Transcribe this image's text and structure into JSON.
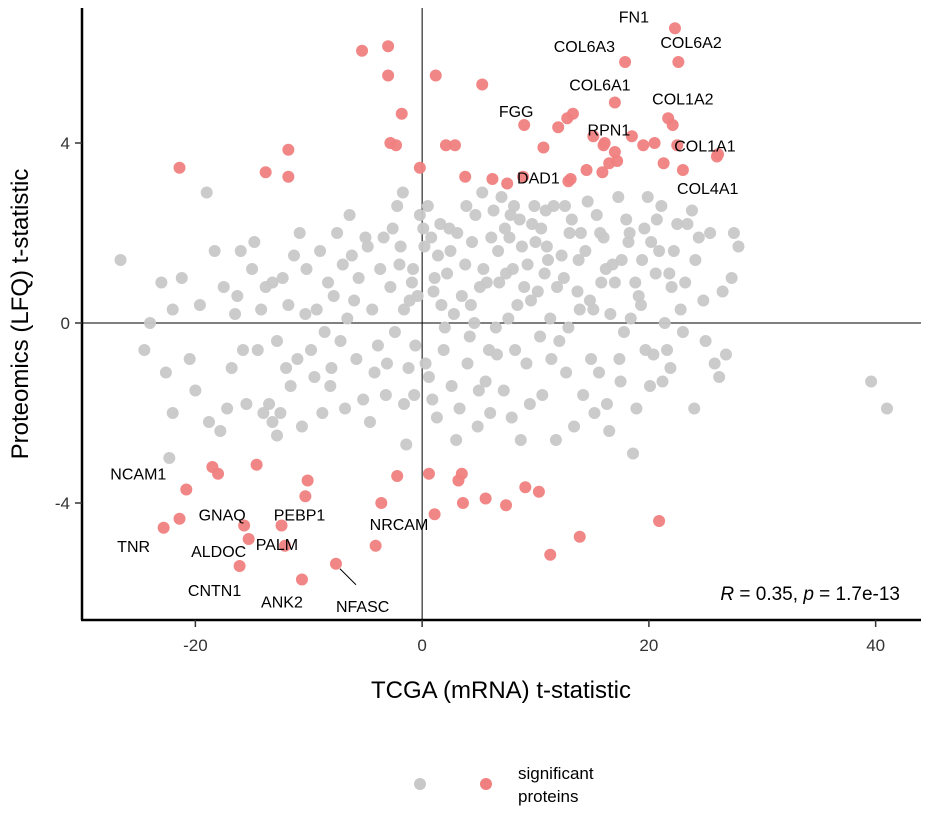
{
  "chart_data": {
    "type": "scatter",
    "xlabel": "TCGA (mRNA) t-statistic",
    "ylabel": "Proteomics (LFQ) t-statistic",
    "xlim": [
      -30,
      44
    ],
    "ylim": [
      -6.6,
      7.0
    ],
    "x_ticks": [
      -20,
      0,
      20,
      40
    ],
    "y_ticks": [
      -4,
      0,
      4
    ],
    "reference_lines": {
      "x": 0,
      "y": 0
    },
    "grid": false,
    "correlation": {
      "r_symbol": "R",
      "r_value": "0.35",
      "p_symbol": "p",
      "p_value": "1.7e-13"
    },
    "legend": {
      "position": "bottom",
      "title": "",
      "entries": [
        {
          "key": "non_significant",
          "label": "",
          "color": "#c8c8c8"
        },
        {
          "key": "significant",
          "label": "significant\nproteins",
          "color": "#f08080"
        }
      ]
    },
    "colors": {
      "non_significant": "#c8c8c8",
      "significant": "#f08080"
    },
    "labeled_points": [
      {
        "label": "FN1",
        "x": 22.3,
        "y": 6.55
      },
      {
        "label": "COL6A3",
        "x": 17.9,
        "y": 5.8
      },
      {
        "label": "COL6A2",
        "x": 22.6,
        "y": 5.8
      },
      {
        "label": "COL6A1",
        "x": 17.0,
        "y": 4.9
      },
      {
        "label": "COL1A2",
        "x": 21.7,
        "y": 4.55
      },
      {
        "label": "FGG",
        "x": 9.0,
        "y": 4.4
      },
      {
        "label": "RPN1",
        "x": 16.0,
        "y": 3.95
      },
      {
        "label": "DAD1",
        "x": 12.9,
        "y": 3.15
      },
      {
        "label": "COL1A1",
        "x": 26.0,
        "y": 3.7
      },
      {
        "label": "COL4A1",
        "x": 21.6,
        "y": 3.0
      },
      {
        "label": "NCAM1",
        "x": -20.8,
        "y": -3.7
      },
      {
        "label": "GNAQ",
        "x": -15.7,
        "y": -4.5
      },
      {
        "label": "PEBP1",
        "x": -12.4,
        "y": -4.5
      },
      {
        "label": "TNR",
        "x": -22.8,
        "y": -4.55
      },
      {
        "label": "ALDOC",
        "x": -15.3,
        "y": -4.8
      },
      {
        "label": "CNTN1",
        "x": -16.1,
        "y": -5.4
      },
      {
        "label": "PALM",
        "x": -12.1,
        "y": -4.95
      },
      {
        "label": "ANK2",
        "x": -10.6,
        "y": -5.7
      },
      {
        "label": "NRCAM",
        "x": -4.1,
        "y": -4.95
      },
      {
        "label": "NFASC",
        "x": -7.6,
        "y": -5.35
      }
    ],
    "significant_points": [
      [
        22.3,
        6.55
      ],
      [
        17.9,
        5.8
      ],
      [
        22.6,
        5.8
      ],
      [
        17.0,
        4.9
      ],
      [
        21.7,
        4.55
      ],
      [
        9.0,
        4.4
      ],
      [
        16.0,
        3.95
      ],
      [
        12.9,
        3.15
      ],
      [
        26.0,
        3.7
      ],
      [
        -20.8,
        -3.7
      ],
      [
        -15.7,
        -4.5
      ],
      [
        -12.4,
        -4.5
      ],
      [
        -22.8,
        -4.55
      ],
      [
        -15.3,
        -4.8
      ],
      [
        -16.1,
        -5.4
      ],
      [
        -12.1,
        -4.95
      ],
      [
        -10.6,
        -5.7
      ],
      [
        -4.1,
        -4.95
      ],
      [
        -7.6,
        -5.35
      ],
      [
        -5.3,
        6.05
      ],
      [
        -3.0,
        6.15
      ],
      [
        -3.0,
        5.5
      ],
      [
        1.2,
        5.5
      ],
      [
        5.3,
        5.3
      ],
      [
        -1.8,
        4.65
      ],
      [
        -2.3,
        3.95
      ],
      [
        2.1,
        3.95
      ],
      [
        2.9,
        3.95
      ],
      [
        -0.2,
        3.45
      ],
      [
        3.8,
        3.25
      ],
      [
        6.2,
        3.2
      ],
      [
        7.5,
        3.1
      ],
      [
        8.9,
        3.25
      ],
      [
        -21.4,
        3.45
      ],
      [
        -13.8,
        3.35
      ],
      [
        -11.8,
        3.25
      ],
      [
        -11.8,
        3.85
      ],
      [
        12.0,
        4.35
      ],
      [
        12.8,
        4.55
      ],
      [
        13.3,
        4.65
      ],
      [
        15.1,
        4.15
      ],
      [
        16.1,
        4.0
      ],
      [
        16.5,
        3.55
      ],
      [
        17.0,
        3.8
      ],
      [
        18.5,
        4.15
      ],
      [
        19.5,
        3.95
      ],
      [
        20.5,
        4.0
      ],
      [
        21.3,
        3.55
      ],
      [
        22.1,
        4.4
      ],
      [
        22.5,
        3.95
      ],
      [
        23.0,
        3.4
      ],
      [
        26.1,
        3.75
      ],
      [
        14.5,
        3.4
      ],
      [
        15.9,
        3.35
      ],
      [
        13.1,
        3.2
      ],
      [
        17.2,
        3.6
      ],
      [
        10.7,
        3.9
      ],
      [
        -18.5,
        -3.2
      ],
      [
        -18.0,
        -3.35
      ],
      [
        -14.6,
        -3.15
      ],
      [
        -21.4,
        -4.35
      ],
      [
        -10.1,
        -3.5
      ],
      [
        -10.3,
        -3.85
      ],
      [
        -2.2,
        -3.4
      ],
      [
        0.6,
        -3.35
      ],
      [
        -3.6,
        -4.0
      ],
      [
        1.1,
        -4.25
      ],
      [
        3.5,
        -3.35
      ],
      [
        3.2,
        -3.5
      ],
      [
        3.6,
        -4.0
      ],
      [
        5.6,
        -3.9
      ],
      [
        7.4,
        -4.05
      ],
      [
        9.1,
        -3.65
      ],
      [
        10.3,
        -3.75
      ],
      [
        11.3,
        -5.15
      ],
      [
        13.9,
        -4.75
      ],
      [
        20.9,
        -4.4
      ],
      [
        -2.8,
        4.0
      ]
    ],
    "other_points": [
      [
        -26.6,
        1.4
      ],
      [
        -24.0,
        0.0
      ],
      [
        -22.3,
        -3.0
      ],
      [
        -22.0,
        -2.0
      ],
      [
        -22.0,
        0.3
      ],
      [
        -19.0,
        2.9
      ],
      [
        -17.8,
        -2.4
      ],
      [
        -17.5,
        0.8
      ],
      [
        -16.3,
        0.6
      ],
      [
        -16.0,
        1.6
      ],
      [
        -15.0,
        1.2
      ],
      [
        -15.5,
        -1.8
      ],
      [
        -14.0,
        -2.0
      ],
      [
        -13.2,
        -2.2
      ],
      [
        -12.8,
        -2.5
      ],
      [
        -12.5,
        -2.0
      ],
      [
        -13.8,
        0.8
      ],
      [
        -12.8,
        -0.4
      ],
      [
        -11.8,
        0.4
      ],
      [
        -11.0,
        -0.8
      ],
      [
        -10.2,
        1.2
      ],
      [
        -9.5,
        -1.2
      ],
      [
        -8.8,
        -2.0
      ],
      [
        -8.1,
        -1.4
      ],
      [
        -7.5,
        2.0
      ],
      [
        -7.0,
        1.3
      ],
      [
        -6.0,
        0.5
      ],
      [
        -5.8,
        -0.8
      ],
      [
        -4.8,
        1.7
      ],
      [
        -4.2,
        -1.1
      ],
      [
        -3.4,
        1.9
      ],
      [
        -2.8,
        0.8
      ],
      [
        -2.2,
        2.6
      ],
      [
        -1.6,
        -1.8
      ],
      [
        -1.1,
        0.5
      ],
      [
        -0.8,
        1.2
      ],
      [
        -0.6,
        -0.5
      ],
      [
        -0.2,
        2.4
      ],
      [
        0.2,
        1.7
      ],
      [
        0.6,
        -1.2
      ],
      [
        1.0,
        0.7
      ],
      [
        1.4,
        1.5
      ],
      [
        1.9,
        -0.6
      ],
      [
        2.4,
        2.1
      ],
      [
        2.8,
        0.2
      ],
      [
        3.3,
        -1.9
      ],
      [
        3.8,
        1.3
      ],
      [
        4.2,
        -0.3
      ],
      [
        4.7,
        2.4
      ],
      [
        5.1,
        0.8
      ],
      [
        5.6,
        -1.3
      ],
      [
        6.1,
        1.9
      ],
      [
        6.5,
        -0.1
      ],
      [
        7.0,
        2.8
      ],
      [
        7.4,
        1.1
      ],
      [
        7.9,
        -2.1
      ],
      [
        8.4,
        0.4
      ],
      [
        8.8,
        1.7
      ],
      [
        9.2,
        -0.9
      ],
      [
        9.7,
        2.2
      ],
      [
        10.2,
        0.7
      ],
      [
        10.6,
        -1.6
      ],
      [
        11.1,
        1.4
      ],
      [
        11.6,
        2.6
      ],
      [
        12.1,
        -0.4
      ],
      [
        12.5,
        1.0
      ],
      [
        13.0,
        2.0
      ],
      [
        13.4,
        -2.3
      ],
      [
        13.9,
        0.3
      ],
      [
        14.4,
        1.6
      ],
      [
        14.9,
        -0.8
      ],
      [
        15.4,
        2.4
      ],
      [
        15.8,
        0.9
      ],
      [
        16.3,
        -1.8
      ],
      [
        16.8,
        1.3
      ],
      [
        17.3,
        2.8
      ],
      [
        17.8,
        -0.2
      ],
      [
        18.2,
        1.8
      ],
      [
        18.6,
        -2.9
      ],
      [
        19.1,
        0.6
      ],
      [
        19.6,
        2.1
      ],
      [
        20.1,
        -1.4
      ],
      [
        20.6,
        1.1
      ],
      [
        21.1,
        2.6
      ],
      [
        21.6,
        -0.6
      ],
      [
        22.2,
        1.6
      ],
      [
        22.8,
        0.3
      ],
      [
        23.4,
        2.2
      ],
      [
        24.0,
        -1.9
      ],
      [
        24.8,
        0.5
      ],
      [
        25.4,
        2.0
      ],
      [
        26.2,
        -1.2
      ],
      [
        26.8,
        -0.7
      ],
      [
        27.3,
        1.0
      ],
      [
        27.9,
        1.7
      ],
      [
        39.6,
        -1.3
      ],
      [
        41.0,
        -1.9
      ],
      [
        -20.0,
        -1.5
      ],
      [
        -18.8,
        -2.2
      ],
      [
        -16.8,
        -1.0
      ],
      [
        -14.8,
        1.8
      ],
      [
        -13.2,
        0.9
      ],
      [
        -11.6,
        -1.4
      ],
      [
        -10.3,
        0.2
      ],
      [
        -9.0,
        1.6
      ],
      [
        -8.3,
        0.9
      ],
      [
        -7.2,
        -0.4
      ],
      [
        -6.4,
        2.4
      ],
      [
        -5.2,
        -1.7
      ],
      [
        -4.4,
        0.3
      ],
      [
        -3.7,
        1.2
      ],
      [
        -3.1,
        -0.9
      ],
      [
        -2.4,
        -0.2
      ],
      [
        -1.9,
        1.7
      ],
      [
        -1.4,
        -2.7
      ],
      [
        -0.9,
        0.9
      ],
      [
        0.3,
        -0.9
      ],
      [
        0.8,
        1.9
      ],
      [
        1.3,
        -2.1
      ],
      [
        1.7,
        0.4
      ],
      [
        2.2,
        1.1
      ],
      [
        2.6,
        -1.4
      ],
      [
        3.1,
        2.0
      ],
      [
        3.5,
        0.6
      ],
      [
        4.0,
        -0.9
      ],
      [
        4.4,
        1.8
      ],
      [
        4.9,
        -2.3
      ],
      [
        5.4,
        1.2
      ],
      [
        5.9,
        -0.6
      ],
      [
        6.3,
        2.5
      ],
      [
        6.8,
        0.9
      ],
      [
        7.2,
        -1.5
      ],
      [
        7.7,
        1.9
      ],
      [
        8.2,
        -0.6
      ],
      [
        8.6,
        2.3
      ],
      [
        9.0,
        0.8
      ],
      [
        9.5,
        -1.8
      ],
      [
        10.0,
        1.8
      ],
      [
        10.4,
        -0.3
      ],
      [
        10.9,
        2.5
      ],
      [
        11.3,
        0.1
      ],
      [
        11.8,
        -2.6
      ],
      [
        12.3,
        1.5
      ],
      [
        12.7,
        -1.1
      ],
      [
        13.2,
        2.3
      ],
      [
        13.7,
        0.7
      ],
      [
        14.2,
        -1.6
      ],
      [
        14.6,
        2.7
      ],
      [
        15.1,
        0.3
      ],
      [
        15.6,
        -1.1
      ],
      [
        16.0,
        1.9
      ],
      [
        16.5,
        -2.4
      ],
      [
        17.0,
        0.9
      ],
      [
        17.5,
        -1.3
      ],
      [
        18.0,
        2.3
      ],
      [
        18.4,
        0.1
      ],
      [
        18.9,
        -1.9
      ],
      [
        19.4,
        1.4
      ],
      [
        19.9,
        2.8
      ],
      [
        20.4,
        -0.7
      ],
      [
        20.9,
        1.6
      ],
      [
        21.4,
        0.0
      ],
      [
        21.9,
        -1.0
      ],
      [
        22.5,
        2.2
      ],
      [
        23.2,
        0.9
      ],
      [
        24.1,
        1.4
      ],
      [
        25.0,
        -0.4
      ],
      [
        -24.5,
        -0.6
      ],
      [
        -23.0,
        0.9
      ],
      [
        -21.2,
        1.0
      ],
      [
        -19.6,
        0.4
      ],
      [
        -17.2,
        -1.9
      ],
      [
        -15.8,
        -0.6
      ],
      [
        -14.2,
        0.3
      ],
      [
        -12.3,
        1.0
      ],
      [
        -10.8,
        2.0
      ],
      [
        -9.8,
        -0.6
      ],
      [
        -8.6,
        -0.2
      ],
      [
        -7.8,
        0.6
      ],
      [
        -6.8,
        -1.9
      ],
      [
        -5.6,
        1.0
      ],
      [
        -4.6,
        -2.2
      ],
      [
        -3.2,
        -1.6
      ],
      [
        -2.0,
        1.3
      ],
      [
        -1.2,
        -1.0
      ],
      [
        -0.4,
        0.6
      ],
      [
        0.9,
        -1.7
      ],
      [
        1.6,
        2.2
      ],
      [
        2.5,
        1.6
      ],
      [
        3.9,
        2.6
      ],
      [
        4.6,
        0.0
      ],
      [
        5.3,
        2.9
      ],
      [
        6.0,
        -2.0
      ],
      [
        6.7,
        1.6
      ],
      [
        7.6,
        0.1
      ],
      [
        8.1,
        2.6
      ],
      [
        9.3,
        1.3
      ],
      [
        10.5,
        2.1
      ],
      [
        11.4,
        -0.8
      ],
      [
        12.6,
        2.6
      ],
      [
        13.8,
        1.4
      ],
      [
        14.8,
        0.5
      ],
      [
        15.7,
        2.0
      ],
      [
        16.6,
        0.2
      ],
      [
        17.6,
        1.4
      ],
      [
        18.8,
        0.9
      ],
      [
        19.7,
        -0.6
      ],
      [
        20.7,
        2.3
      ],
      [
        21.8,
        1.1
      ],
      [
        23.8,
        2.5
      ],
      [
        25.8,
        -0.9
      ],
      [
        -22.6,
        -1.1
      ],
      [
        -20.5,
        -0.8
      ],
      [
        -18.3,
        1.6
      ],
      [
        -16.5,
        0.2
      ],
      [
        -14.5,
        -0.6
      ],
      [
        -13.5,
        -1.8
      ],
      [
        -11.3,
        1.5
      ],
      [
        -9.3,
        0.3
      ],
      [
        -8.0,
        -1.0
      ],
      [
        -6.6,
        0.1
      ],
      [
        -5.0,
        1.9
      ],
      [
        -3.9,
        -0.5
      ],
      [
        -2.6,
        2.1
      ],
      [
        -1.6,
        0.3
      ],
      [
        -0.7,
        -1.6
      ],
      [
        0.1,
        2.1
      ],
      [
        1.1,
        1.0
      ],
      [
        2.0,
        -0.1
      ],
      [
        3.0,
        -2.6
      ],
      [
        4.3,
        0.4
      ],
      [
        5.0,
        -1.5
      ],
      [
        5.7,
        0.9
      ],
      [
        6.6,
        -0.7
      ],
      [
        7.3,
        2.1
      ],
      [
        8.0,
        1.2
      ],
      [
        8.7,
        -2.6
      ],
      [
        9.6,
        0.5
      ],
      [
        10.8,
        1.1
      ],
      [
        11.9,
        0.8
      ],
      [
        12.9,
        -0.1
      ],
      [
        14.0,
        2.0
      ],
      [
        15.2,
        -2.0
      ],
      [
        16.2,
        1.2
      ],
      [
        17.4,
        -0.8
      ],
      [
        18.3,
        2.0
      ],
      [
        19.3,
        0.4
      ],
      [
        20.2,
        1.8
      ],
      [
        21.2,
        -1.3
      ],
      [
        22.0,
        0.8
      ],
      [
        23.0,
        -0.2
      ],
      [
        24.4,
        1.9
      ],
      [
        26.5,
        0.7
      ],
      [
        27.5,
        2.0
      ],
      [
        -12.0,
        -1.0
      ],
      [
        -10.6,
        -2.3
      ],
      [
        -6.2,
        1.5
      ],
      [
        -1.7,
        2.9
      ],
      [
        0.5,
        2.6
      ],
      [
        7.8,
        2.4
      ],
      [
        9.9,
        2.6
      ],
      [
        11.0,
        1.7
      ]
    ]
  }
}
